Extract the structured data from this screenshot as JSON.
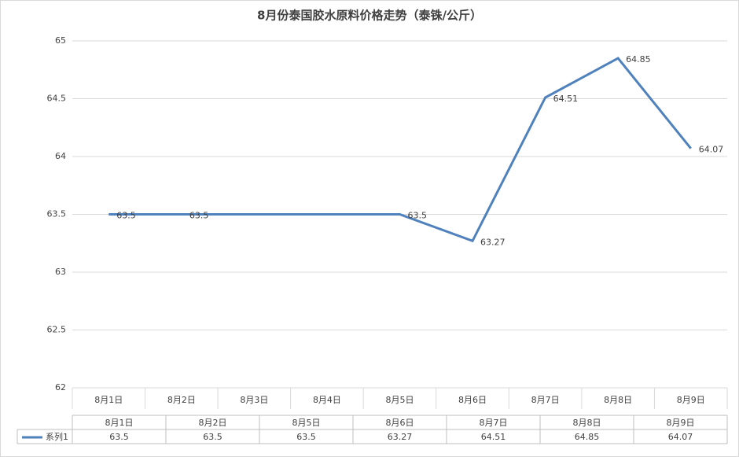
{
  "chart_data": {
    "type": "line",
    "title": "8月份泰国胶水原料价格走势（泰铢/公斤）",
    "categories": [
      "8月1日",
      "8月2日",
      "8月3日",
      "8月4日",
      "8月5日",
      "8月6日",
      "8月7日",
      "8月8日",
      "8月9日"
    ],
    "series": [
      {
        "name": "系列1",
        "color": "#4f81bd",
        "x": [
          "8月1日",
          "8月2日",
          "8月5日",
          "8月6日",
          "8月7日",
          "8月8日",
          "8月9日"
        ],
        "values": [
          63.5,
          63.5,
          63.5,
          63.27,
          64.51,
          64.85,
          64.07
        ]
      }
    ],
    "ylim": [
      62,
      65
    ],
    "yticks": [
      62,
      62.5,
      63,
      63.5,
      64,
      64.5,
      65
    ],
    "grid": true
  }
}
